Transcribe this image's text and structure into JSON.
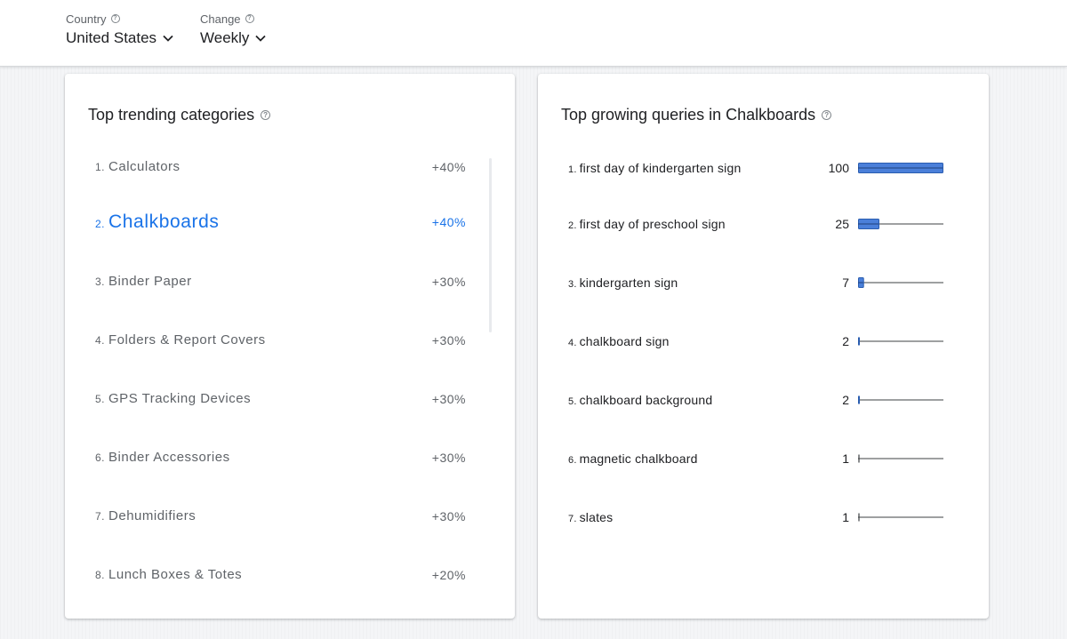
{
  "header": {
    "country": {
      "label": "Country",
      "value": "United States"
    },
    "change": {
      "label": "Change",
      "value": "Weekly"
    }
  },
  "trending": {
    "title": "Top trending categories",
    "items": [
      {
        "rank": "1.",
        "name": "Calculators",
        "pct": "+40%"
      },
      {
        "rank": "2.",
        "name": "Chalkboards",
        "pct": "+40%"
      },
      {
        "rank": "3.",
        "name": "Binder Paper",
        "pct": "+30%"
      },
      {
        "rank": "4.",
        "name": "Folders & Report Covers",
        "pct": "+30%"
      },
      {
        "rank": "5.",
        "name": "GPS Tracking Devices",
        "pct": "+30%"
      },
      {
        "rank": "6.",
        "name": "Binder Accessories",
        "pct": "+30%"
      },
      {
        "rank": "7.",
        "name": "Dehumidifiers",
        "pct": "+30%"
      },
      {
        "rank": "8.",
        "name": "Lunch Boxes & Totes",
        "pct": "+20%"
      }
    ]
  },
  "queries": {
    "title": "Top growing queries in Chalkboards",
    "bar_color": "#4a7fd9",
    "items": [
      {
        "rank": "1.",
        "label": "first day of kindergarten sign",
        "value": 100
      },
      {
        "rank": "2.",
        "label": "first day of preschool sign",
        "value": 25
      },
      {
        "rank": "3.",
        "label": "kindergarten sign",
        "value": 7
      },
      {
        "rank": "4.",
        "label": "chalkboard sign",
        "value": 2
      },
      {
        "rank": "5.",
        "label": "chalkboard background",
        "value": 2
      },
      {
        "rank": "6.",
        "label": "magnetic chalkboard",
        "value": 1
      },
      {
        "rank": "7.",
        "label": "slates",
        "value": 1
      }
    ]
  }
}
